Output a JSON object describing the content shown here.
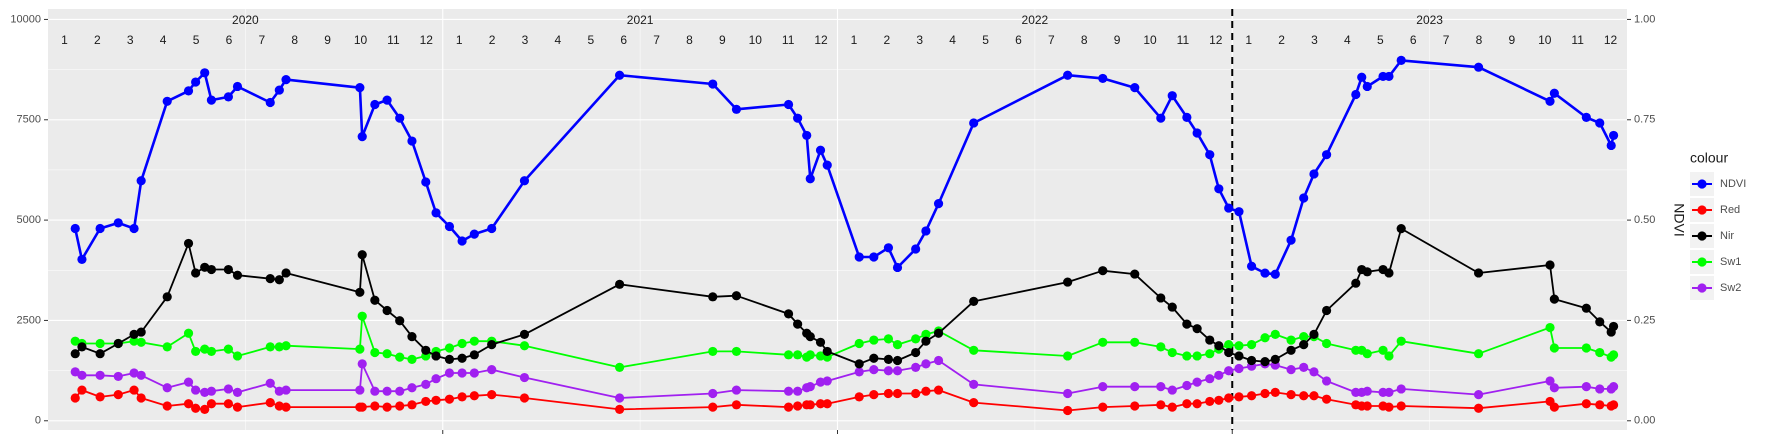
{
  "chart_data": {
    "type": "line",
    "legend_title": "colour",
    "y2_label": "NDVI",
    "x_years": [
      2020,
      2021,
      2022,
      2023
    ],
    "x_months": [
      1,
      2,
      3,
      4,
      5,
      6,
      7,
      8,
      9,
      10,
      11,
      12
    ],
    "vline": 2023,
    "xlim": [
      2020,
      2024
    ],
    "xticks": [
      2021,
      2022,
      2023
    ],
    "ylim": [
      -230,
      10260
    ],
    "yticks": [
      0,
      2500,
      5000,
      7500,
      10000
    ],
    "y2lim": [
      -0.023,
      1.026
    ],
    "y2ticks": [
      {
        "value": 0,
        "label": "0.00"
      },
      {
        "value": 0.25,
        "label": "0.25"
      },
      {
        "value": 0.5,
        "label": "0.50"
      },
      {
        "value": 0.75,
        "label": "0.75"
      },
      {
        "value": 1,
        "label": "1.00"
      }
    ],
    "grid": true,
    "legend_position": "right",
    "x": [
      2020.069,
      2020.086,
      2020.132,
      2020.178,
      2020.218,
      2020.236,
      2020.302,
      2020.356,
      2020.374,
      2020.397,
      2020.414,
      2020.457,
      2020.48,
      2020.563,
      2020.586,
      2020.603,
      2020.79,
      2020.796,
      2020.828,
      2020.859,
      2020.891,
      2020.922,
      2020.957,
      2020.983,
      2021.017,
      2021.049,
      2021.08,
      2021.124,
      2021.207,
      2021.448,
      2021.684,
      2021.744,
      2021.876,
      2021.899,
      2021.922,
      2021.931,
      2021.957,
      2021.974,
      2022.055,
      2022.092,
      2022.129,
      2022.152,
      2022.198,
      2022.224,
      2022.256,
      2022.345,
      2022.583,
      2022.672,
      2022.753,
      2022.819,
      2022.848,
      2022.885,
      2022.911,
      2022.943,
      2022.966,
      2022.991,
      2023.017,
      2023.049,
      2023.083,
      2023.109,
      2023.149,
      2023.181,
      2023.207,
      2023.239,
      2023.313,
      2023.328,
      2023.342,
      2023.382,
      2023.397,
      2023.428,
      2023.624,
      2023.805,
      2023.816,
      2023.897,
      2023.931,
      2023.96,
      2023.966
    ],
    "series": [
      {
        "name": "NDVI",
        "color": "#0000FF",
        "axis": "y2",
        "values": [
          0.479,
          0.402,
          0.479,
          0.493,
          0.479,
          0.598,
          0.796,
          0.822,
          0.844,
          0.867,
          0.799,
          0.807,
          0.833,
          0.793,
          0.824,
          0.85,
          0.83,
          0.708,
          0.788,
          0.799,
          0.754,
          0.697,
          0.595,
          0.518,
          0.484,
          0.448,
          0.465,
          0.479,
          0.598,
          0.861,
          0.839,
          0.776,
          0.788,
          0.754,
          0.711,
          0.603,
          0.674,
          0.637,
          0.408,
          0.408,
          0.431,
          0.382,
          0.428,
          0.473,
          0.541,
          0.742,
          0.861,
          0.853,
          0.83,
          0.754,
          0.81,
          0.756,
          0.717,
          0.663,
          0.578,
          0.53,
          0.521,
          0.385,
          0.368,
          0.365,
          0.45,
          0.555,
          0.615,
          0.663,
          0.813,
          0.856,
          0.833,
          0.858,
          0.858,
          0.898,
          0.881,
          0.796,
          0.816,
          0.756,
          0.742,
          0.686,
          0.711
        ]
      },
      {
        "name": "Red",
        "color": "#FF0000",
        "values": [
          567,
          765,
          595,
          652,
          765,
          567,
          368,
          425,
          312,
          283,
          425,
          425,
          340,
          453,
          368,
          340,
          340,
          340,
          368,
          340,
          368,
          397,
          482,
          510,
          538,
          595,
          623,
          652,
          567,
          283,
          340,
          397,
          340,
          368,
          397,
          397,
          425,
          425,
          595,
          652,
          680,
          680,
          680,
          737,
          765,
          453,
          255,
          340,
          368,
          397,
          340,
          425,
          425,
          482,
          510,
          567,
          595,
          623,
          680,
          708,
          652,
          623,
          623,
          538,
          397,
          368,
          368,
          368,
          340,
          368,
          312,
          482,
          340,
          425,
          397,
          368,
          397
        ]
      },
      {
        "name": "Nir",
        "color": "#000000",
        "values": [
          1671,
          1841,
          1671,
          1926,
          2153,
          2210,
          3088,
          4419,
          3683,
          3824,
          3768,
          3768,
          3626,
          3541,
          3513,
          3683,
          3201,
          4136,
          3003,
          2748,
          2493,
          2096,
          1756,
          1615,
          1530,
          1558,
          1643,
          1898,
          2153,
          3400,
          3088,
          3116,
          2663,
          2408,
          2181,
          2096,
          1955,
          1728,
          1417,
          1558,
          1530,
          1501,
          1700,
          1983,
          2181,
          2975,
          3456,
          3740,
          3655,
          3060,
          2833,
          2408,
          2295,
          2011,
          1870,
          1700,
          1615,
          1501,
          1473,
          1530,
          1756,
          1898,
          2153,
          2748,
          3428,
          3768,
          3711,
          3768,
          3683,
          4788,
          3683,
          3881,
          3031,
          2805,
          2465,
          2210,
          2351
        ]
      },
      {
        "name": "Sw1",
        "color": "#00FF00",
        "values": [
          1983,
          1926,
          1926,
          1926,
          1983,
          1955,
          1841,
          2181,
          1728,
          1785,
          1728,
          1785,
          1615,
          1841,
          1841,
          1870,
          1785,
          2606,
          1700,
          1671,
          1586,
          1530,
          1615,
          1728,
          1813,
          1926,
          1983,
          1983,
          1870,
          1331,
          1728,
          1728,
          1643,
          1643,
          1586,
          1643,
          1615,
          1586,
          1926,
          2011,
          2040,
          1898,
          2040,
          2153,
          2238,
          1756,
          1615,
          1955,
          1955,
          1841,
          1700,
          1615,
          1615,
          1671,
          1785,
          1898,
          1870,
          1898,
          2068,
          2153,
          2011,
          2096,
          2096,
          1926,
          1756,
          1756,
          1671,
          1756,
          1615,
          1983,
          1671,
          2323,
          1813,
          1813,
          1700,
          1586,
          1643
        ]
      },
      {
        "name": "Sw2",
        "color": "#A020F0",
        "values": [
          1218,
          1133,
          1133,
          1105,
          1190,
          1133,
          822,
          963,
          765,
          708,
          737,
          793,
          708,
          935,
          737,
          765,
          765,
          1417,
          737,
          737,
          737,
          822,
          907,
          1048,
          1190,
          1190,
          1190,
          1275,
          1077,
          567,
          680,
          765,
          737,
          737,
          822,
          850,
          963,
          992,
          1218,
          1275,
          1247,
          1247,
          1331,
          1417,
          1501,
          907,
          680,
          850,
          850,
          850,
          765,
          878,
          963,
          1048,
          1133,
          1247,
          1303,
          1360,
          1417,
          1388,
          1275,
          1331,
          1218,
          992,
          708,
          708,
          737,
          708,
          708,
          793,
          652,
          992,
          822,
          850,
          793,
          793,
          850
        ]
      }
    ]
  }
}
